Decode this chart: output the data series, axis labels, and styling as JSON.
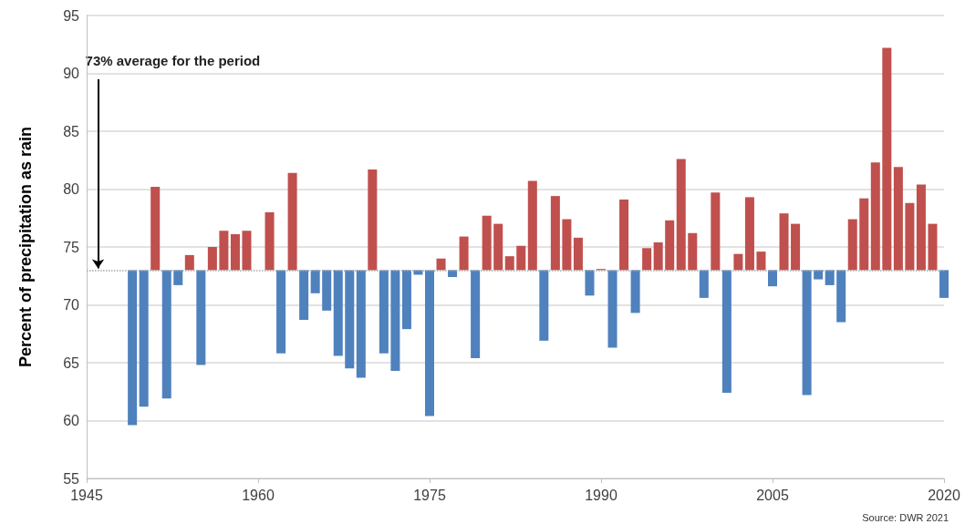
{
  "chart_data": {
    "type": "bar",
    "ylabel": "Percent of precipitation as rain",
    "xlim": [
      1945,
      2020
    ],
    "xticks": [
      1945,
      1960,
      1975,
      1990,
      2005,
      2020
    ],
    "ylim": [
      55,
      95
    ],
    "yticks": [
      55,
      60,
      65,
      70,
      75,
      80,
      85,
      90,
      95
    ],
    "grid": "y",
    "ref_lines": [
      {
        "axis": "y",
        "value": 73,
        "color": "#a6a6a6",
        "line_style": "dotted"
      }
    ],
    "annotations": [
      {
        "text": "73% average for the period",
        "x": 1946,
        "y": 73
      },
      "Source: DWR 2021"
    ],
    "series": [
      {
        "color": "#c0504d",
        "x": [
          1951,
          1954,
          1956,
          1957,
          1958,
          1959,
          1961,
          1963,
          1970,
          1976,
          1978,
          1980,
          1981,
          1982,
          1983,
          1984,
          1986,
          1987,
          1988,
          1990,
          1992,
          1994,
          1995,
          1996,
          1997,
          1998,
          2000,
          2002,
          2003,
          2004,
          2006,
          2007,
          2012,
          2013,
          2014,
          2015,
          2016,
          2017,
          2018,
          2019
        ],
        "base": [
          73,
          73,
          73,
          73,
          73,
          73,
          73,
          73,
          73,
          73,
          73,
          73,
          73,
          73,
          73,
          73,
          73,
          73,
          73,
          73,
          73,
          73,
          73,
          73,
          73,
          73,
          73,
          73,
          73,
          73,
          73,
          73,
          73,
          73,
          73,
          73,
          73,
          73,
          73,
          73
        ],
        "values": [
          7.2,
          1.3,
          2.0,
          3.4,
          3.1,
          3.4,
          5.0,
          8.4,
          8.7,
          1.0,
          2.9,
          4.7,
          4.0,
          1.2,
          2.1,
          7.7,
          6.4,
          4.4,
          2.8,
          0.1,
          6.1,
          1.9,
          2.4,
          4.3,
          9.6,
          3.2,
          6.7,
          1.4,
          6.3,
          1.6,
          4.9,
          4.0,
          4.4,
          6.2,
          9.3,
          19.2,
          8.9,
          5.8,
          7.4,
          4.0
        ]
      },
      {
        "color": "#4f81bd",
        "x": [
          1949,
          1950,
          1952,
          1953,
          1955,
          1962,
          1964,
          1965,
          1966,
          1967,
          1968,
          1969,
          1971,
          1972,
          1973,
          1974,
          1975,
          1977,
          1979,
          1985,
          1989,
          1991,
          1993,
          1999,
          2001,
          2005,
          2008,
          2009,
          2010,
          2011,
          2020
        ],
        "base": [
          73,
          73,
          73,
          73,
          73,
          73,
          73,
          73,
          73,
          73,
          73,
          73,
          73,
          73,
          73,
          73,
          73,
          73,
          73,
          73,
          73,
          73,
          73,
          73,
          73,
          73,
          73,
          73,
          73,
          73,
          73
        ],
        "values": [
          -13.4,
          -11.8,
          -11.1,
          -1.3,
          -8.2,
          -7.2,
          -4.3,
          -2.0,
          -3.5,
          -7.4,
          -8.5,
          -9.3,
          -7.2,
          -8.7,
          -5.1,
          -0.4,
          -12.6,
          -0.6,
          -7.6,
          -6.1,
          -2.2,
          -6.7,
          -3.7,
          -2.4,
          -10.6,
          -1.4,
          -10.8,
          -0.8,
          -1.3,
          -4.5,
          -2.4
        ]
      }
    ]
  }
}
